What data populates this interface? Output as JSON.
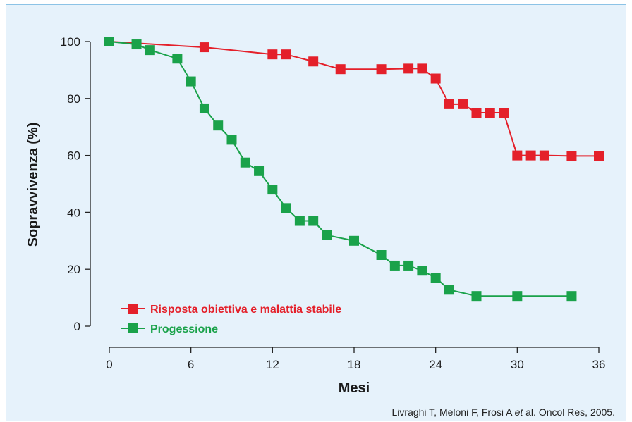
{
  "chart_data": {
    "type": "line",
    "title": "",
    "xlabel": "Mesi",
    "ylabel": "Sopravvivenza (%)",
    "xlim": [
      0,
      36
    ],
    "ylim": [
      0,
      100
    ],
    "xticks": [
      "0",
      "6",
      "12",
      "18",
      "24",
      "30",
      "36"
    ],
    "yticks": [
      "0",
      "20",
      "40",
      "60",
      "80",
      "100"
    ],
    "legend_position": "bottom-left",
    "series": [
      {
        "name": "Risposta obiettiva e malattia stabile",
        "color": "#e4202a",
        "x": [
          0,
          7,
          12,
          13,
          15,
          17,
          20,
          22,
          23,
          24,
          25,
          26,
          27,
          28,
          29,
          30,
          31,
          32,
          34,
          36
        ],
        "y": [
          100,
          98,
          95.5,
          95.5,
          93,
          90.3,
          90.3,
          90.5,
          90.5,
          87,
          78,
          78,
          75,
          75,
          75,
          60,
          60,
          60,
          59.8,
          59.8
        ]
      },
      {
        "name": "Progessione",
        "color": "#1aa24a",
        "x": [
          0,
          2,
          3,
          5,
          6,
          7,
          8,
          9,
          10,
          11,
          12,
          13,
          14,
          15,
          16,
          18,
          20,
          21,
          22,
          23,
          24,
          25,
          27,
          30,
          34
        ],
        "y": [
          100,
          99,
          97,
          94,
          86,
          76.5,
          70.5,
          65.5,
          57.5,
          54.5,
          48,
          41.5,
          37,
          37,
          32,
          30,
          25,
          21.3,
          21.3,
          19.5,
          17,
          12.8,
          10.6,
          10.6,
          10.6
        ]
      }
    ]
  },
  "citation": {
    "text_before": "Livraghi T, Meloni F, Frosi A ",
    "italic": "et",
    "text_after": " al. Oncol Res, 2005."
  }
}
